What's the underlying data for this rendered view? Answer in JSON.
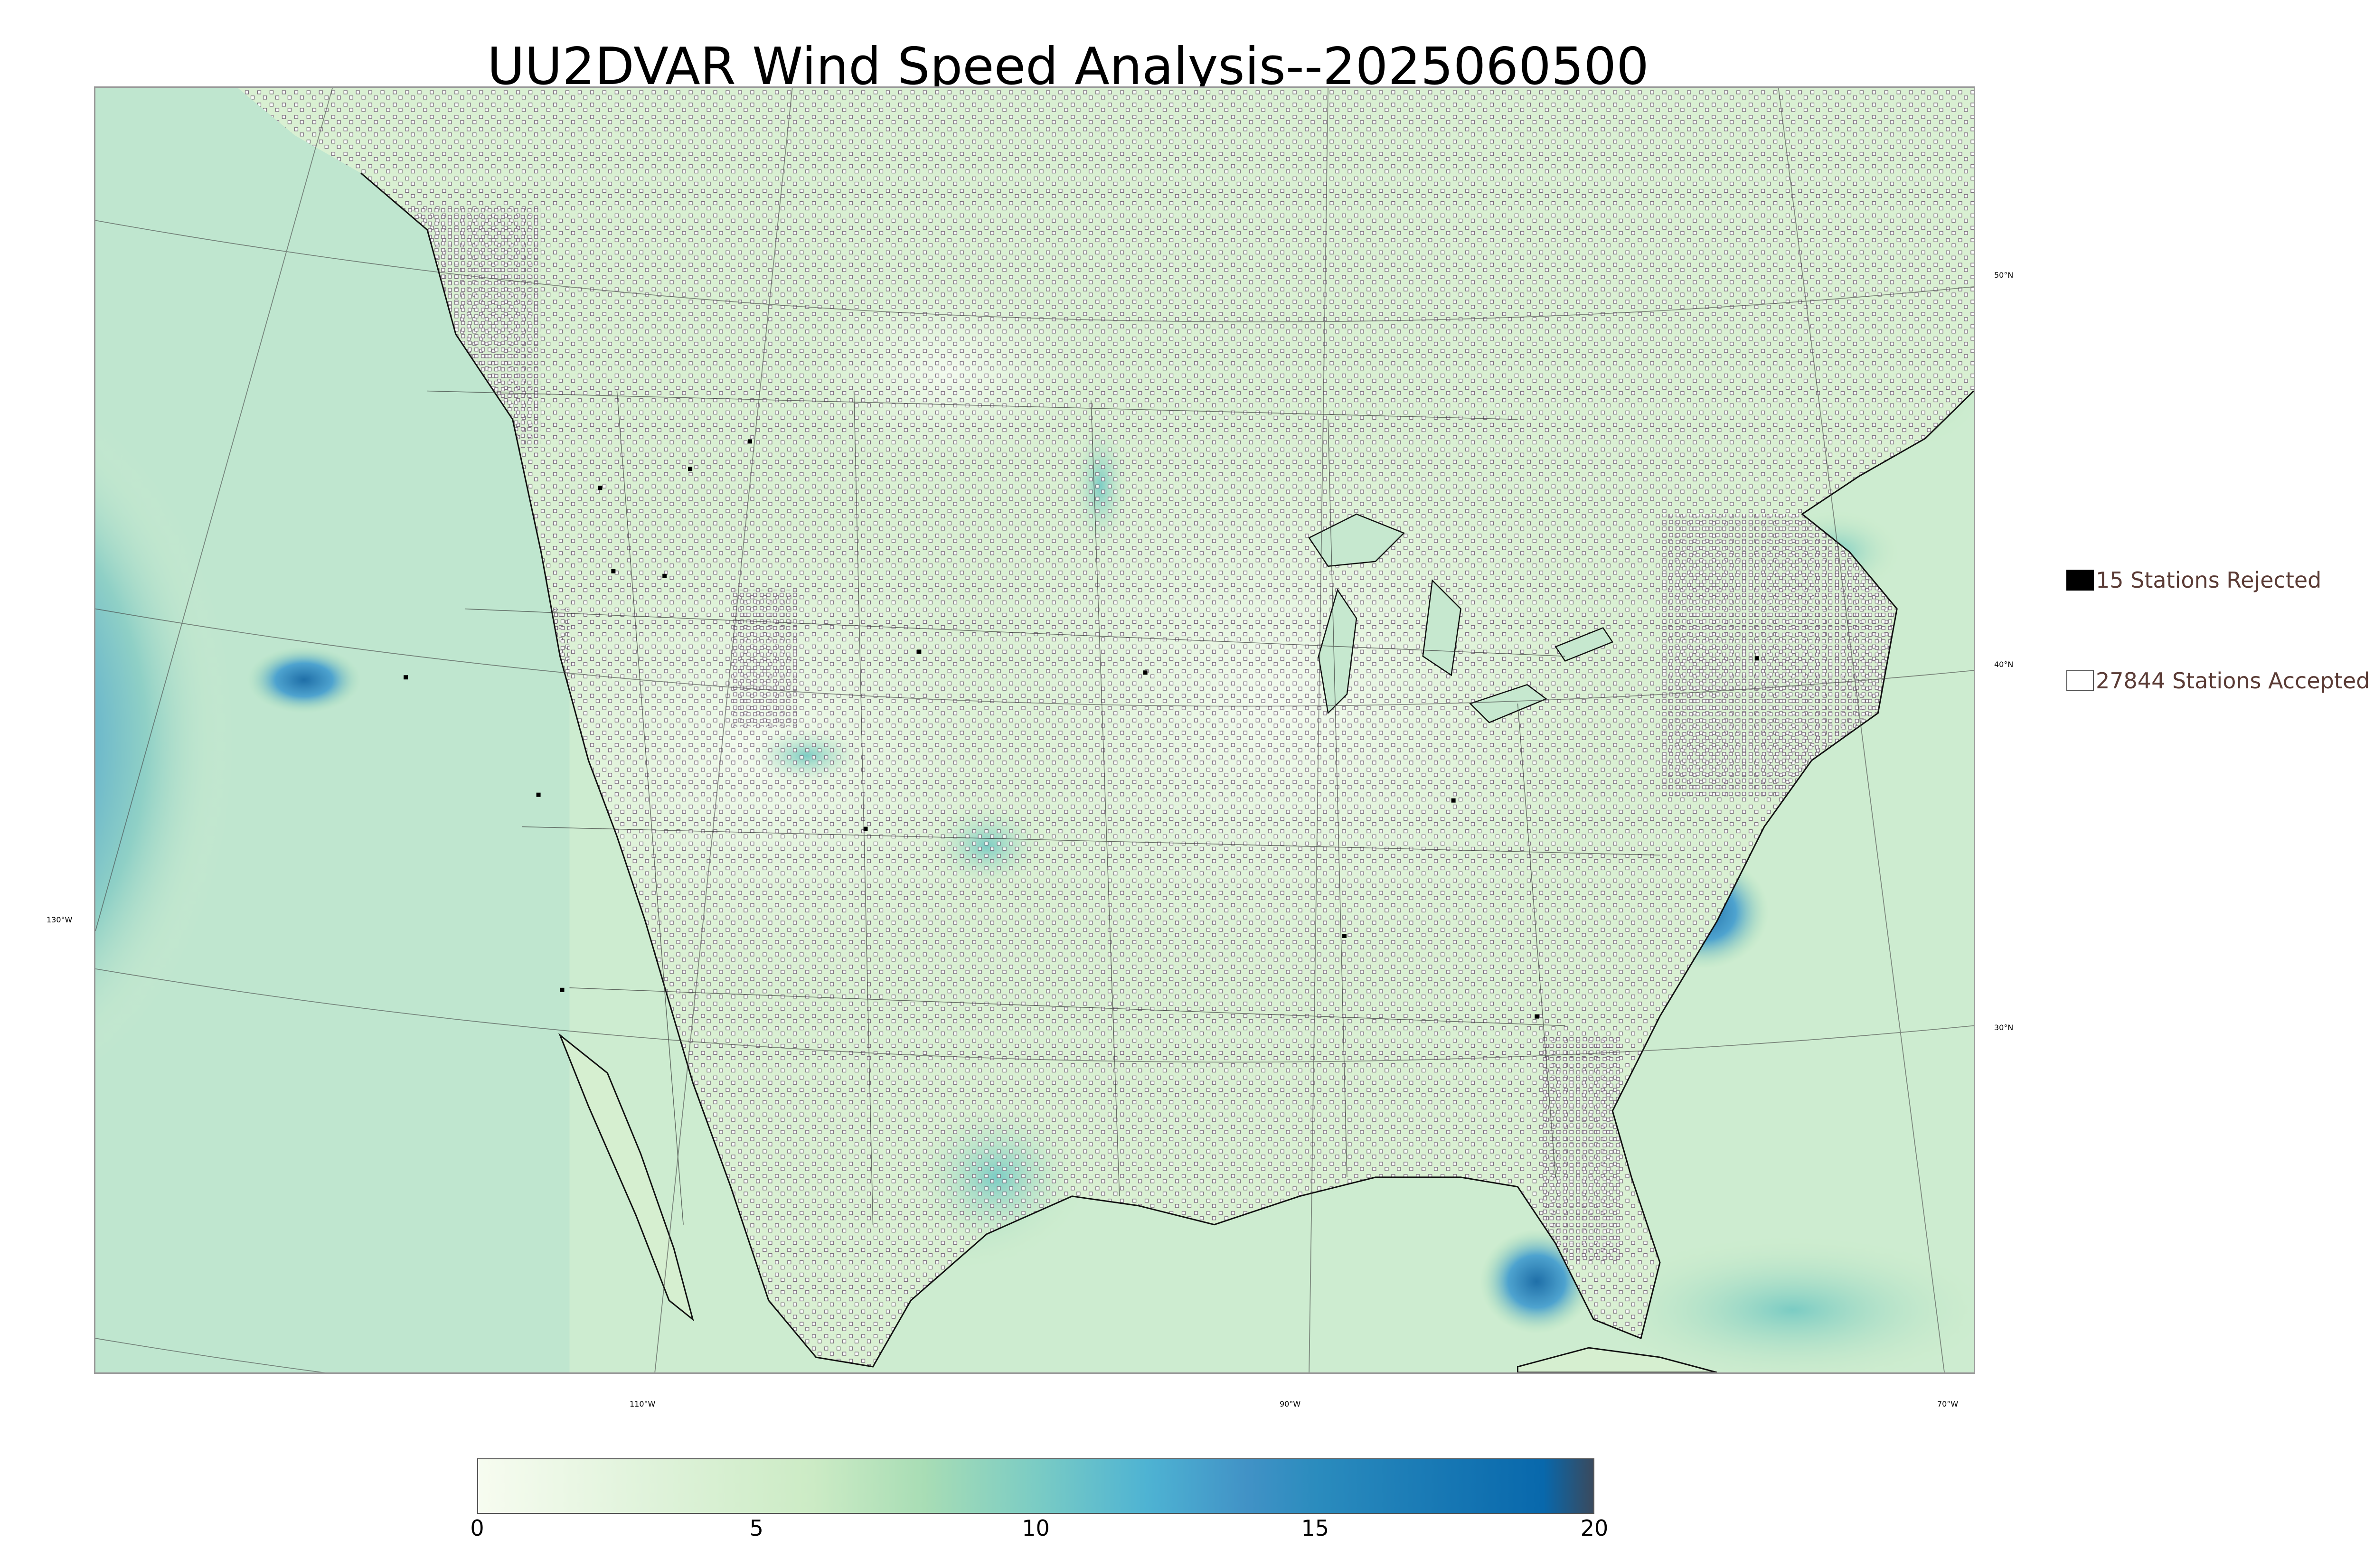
{
  "title": "UU2DVAR Wind Speed Analysis--2025060500",
  "map": {
    "graticule_labels": {
      "lat_50": "50°N",
      "lat_40": "40°N",
      "lat_30": "30°N",
      "lon_130": "130°W",
      "lon_110": "110°W",
      "lon_90": "90°W",
      "lon_70": "70°W"
    },
    "field_colors": {
      "land": "#d6efd0",
      "ocean_low": "#c8ebd0",
      "high_wind": "#4ea3cf",
      "very_high_wind": "#1f6fa8"
    }
  },
  "legend": {
    "rejected": {
      "label": "15 Stations Rejected",
      "color": "#000000"
    },
    "accepted": {
      "label": "27844 Stations Accepted",
      "color": "#ffffff"
    }
  },
  "colorbar": {
    "min": 0,
    "max": 20,
    "ticks": [
      "0",
      "5",
      "10",
      "15",
      "20"
    ],
    "tick_values": [
      0,
      5,
      10,
      15,
      20
    ],
    "stops": [
      {
        "value": 0,
        "color": "#f7fcf0"
      },
      {
        "value": 3,
        "color": "#e0f3db"
      },
      {
        "value": 6,
        "color": "#ccebc5"
      },
      {
        "value": 8,
        "color": "#a8ddb5"
      },
      {
        "value": 10,
        "color": "#7bccc4"
      },
      {
        "value": 12,
        "color": "#4eb3d3"
      },
      {
        "value": 13.8,
        "color": "#4192c6"
      },
      {
        "value": 15,
        "color": "#2b8cbe"
      },
      {
        "value": 19.1,
        "color": "#0868ac"
      },
      {
        "value": 20,
        "color": "#3a4a5e"
      }
    ]
  }
}
